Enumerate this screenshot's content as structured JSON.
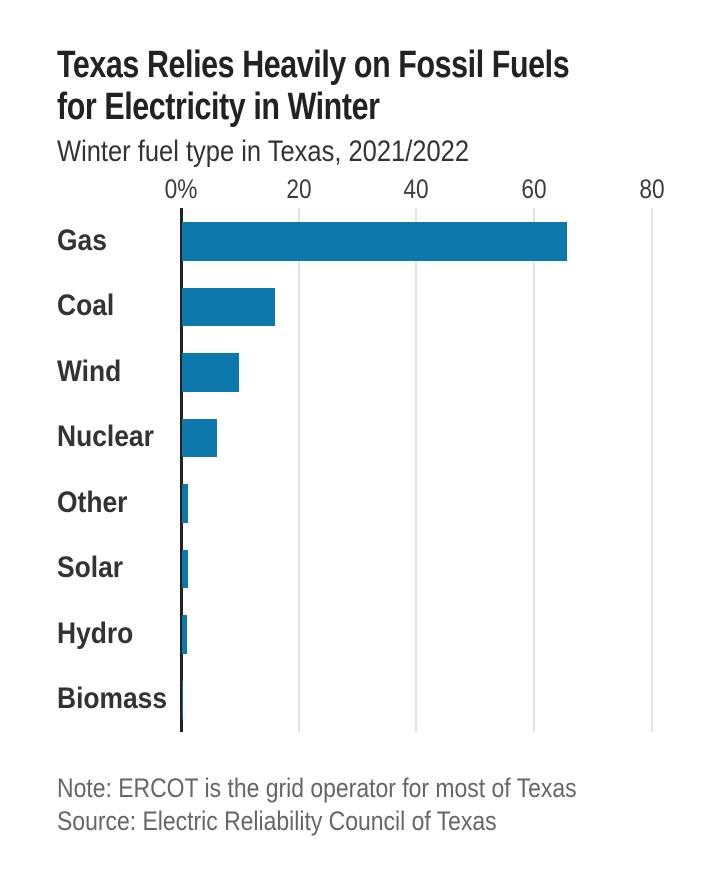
{
  "header": {
    "title_line1": "Texas Relies Heavily on Fossil Fuels",
    "title_line2": "for Electricity in Winter",
    "subtitle": "Winter fuel type in Texas, 2021/2022"
  },
  "footer": {
    "note": "Note: ERCOT is the grid operator for most of Texas",
    "source": "Source: Electric Reliability Council of Texas"
  },
  "colors": {
    "bar": "#0c78ab",
    "axis": "#222222",
    "gridline": "#e3e3e3",
    "title_text": "#222222",
    "label_text": "#333333",
    "tick_text": "#3d3d3d",
    "note_text": "#666666"
  },
  "chart_data": {
    "type": "bar",
    "orientation": "horizontal",
    "title": "Texas Relies Heavily on Fossil Fuels for Electricity in Winter",
    "subtitle": "Winter fuel type in Texas, 2021/2022",
    "categories": [
      "Gas",
      "Coal",
      "Wind",
      "Nuclear",
      "Other",
      "Solar",
      "Hydro",
      "Biomass"
    ],
    "values": [
      65.4,
      15.8,
      9.7,
      6,
      1,
      1,
      0.9,
      0.1
    ],
    "unit": "%",
    "xlabel": "",
    "ylabel": "",
    "xlim": [
      0,
      80
    ],
    "xticks": [
      {
        "value": 0,
        "label": "0%"
      },
      {
        "value": 20,
        "label": "20"
      },
      {
        "value": 40,
        "label": "40"
      },
      {
        "value": 60,
        "label": "60"
      },
      {
        "value": 80,
        "label": "80"
      }
    ],
    "grid": true,
    "legend": false,
    "bar_color": "#0c78ab",
    "note": "Note: ERCOT is the grid operator for most of Texas",
    "source": "Source: Electric Reliability Council of Texas"
  }
}
